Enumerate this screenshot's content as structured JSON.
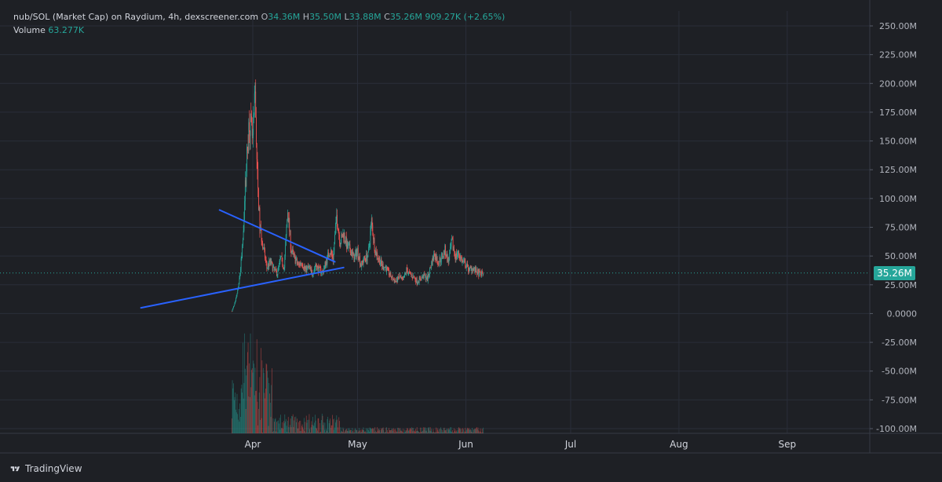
{
  "header": {
    "title": "nub/SOL (Market Cap) on Raydium, 4h, dexscreener.com",
    "open_label": "O",
    "open_value": "34.36M",
    "high_label": "H",
    "high_value": "35.50M",
    "low_label": "L",
    "low_value": "33.88M",
    "close_label": "C",
    "close_value": "35.26M",
    "change_value": "909.27K (+2.65%)",
    "volume_label": "Volume",
    "volume_value": "63.277K"
  },
  "last_price_label": "35.26M",
  "brand": "TradingView",
  "colors": {
    "background": "#1e2025",
    "up": "#26a69a",
    "down": "#ef5350",
    "trendline": "#2962ff",
    "grid": "#2a2e39"
  },
  "chart_data": {
    "type": "candlestick",
    "y_ticks": [
      "250.00M",
      "225.00M",
      "200.00M",
      "175.00M",
      "150.00M",
      "125.00M",
      "100.00M",
      "75.00M",
      "50.00M",
      "25.00M",
      "0.0000",
      "-25.00M",
      "-50.00M",
      "-75.00M",
      "-100.00M"
    ],
    "ylim": [
      -100,
      250
    ],
    "x_ticks": [
      "Apr",
      "May",
      "Jun",
      "Jul",
      "Aug",
      "Sep"
    ],
    "last_close": 35.26,
    "trendlines": [
      {
        "from": [
          -9.5,
          90
        ],
        "to": [
          23.5,
          45
        ]
      },
      {
        "from": [
          -32,
          5
        ],
        "to": [
          26,
          40
        ]
      }
    ],
    "price_path": [
      [
        -6,
        2
      ],
      [
        -5,
        10
      ],
      [
        -4,
        25
      ],
      [
        -3,
        55
      ],
      [
        -2,
        120
      ],
      [
        -1,
        170
      ],
      [
        0,
        150
      ],
      [
        0.7,
        190
      ],
      [
        1.3,
        120
      ],
      [
        2,
        75
      ],
      [
        3,
        58
      ],
      [
        4,
        40
      ],
      [
        5,
        45
      ],
      [
        6,
        38
      ],
      [
        7,
        35
      ],
      [
        8,
        48
      ],
      [
        9,
        40
      ],
      [
        10,
        90
      ],
      [
        11,
        55
      ],
      [
        12,
        48
      ],
      [
        13,
        42
      ],
      [
        14,
        45
      ],
      [
        15,
        38
      ],
      [
        16,
        40
      ],
      [
        17,
        35
      ],
      [
        18,
        42
      ],
      [
        19,
        38
      ],
      [
        20,
        36
      ],
      [
        21,
        45
      ],
      [
        22,
        55
      ],
      [
        23,
        48
      ],
      [
        24,
        85
      ],
      [
        25,
        62
      ],
      [
        26,
        70
      ],
      [
        27,
        58
      ],
      [
        28,
        55
      ],
      [
        29,
        48
      ],
      [
        30,
        55
      ],
      [
        31,
        42
      ],
      [
        32,
        48
      ],
      [
        33,
        50
      ],
      [
        34,
        80
      ],
      [
        35,
        55
      ],
      [
        36,
        48
      ],
      [
        37,
        42
      ],
      [
        38,
        40
      ],
      [
        39,
        35
      ],
      [
        40,
        30
      ],
      [
        41,
        28
      ],
      [
        42,
        32
      ],
      [
        43,
        28
      ],
      [
        44,
        38
      ],
      [
        45,
        34
      ],
      [
        46,
        32
      ],
      [
        47,
        28
      ],
      [
        48,
        30
      ],
      [
        49,
        33
      ],
      [
        50,
        30
      ],
      [
        51,
        42
      ],
      [
        52,
        52
      ],
      [
        53,
        45
      ],
      [
        54,
        48
      ],
      [
        55,
        55
      ],
      [
        56,
        45
      ],
      [
        57,
        62
      ],
      [
        58,
        50
      ],
      [
        59,
        52
      ],
      [
        60,
        45
      ],
      [
        61,
        42
      ],
      [
        62,
        38
      ],
      [
        63,
        40
      ],
      [
        64,
        36
      ],
      [
        65,
        34
      ],
      [
        66,
        35.26
      ]
    ]
  }
}
